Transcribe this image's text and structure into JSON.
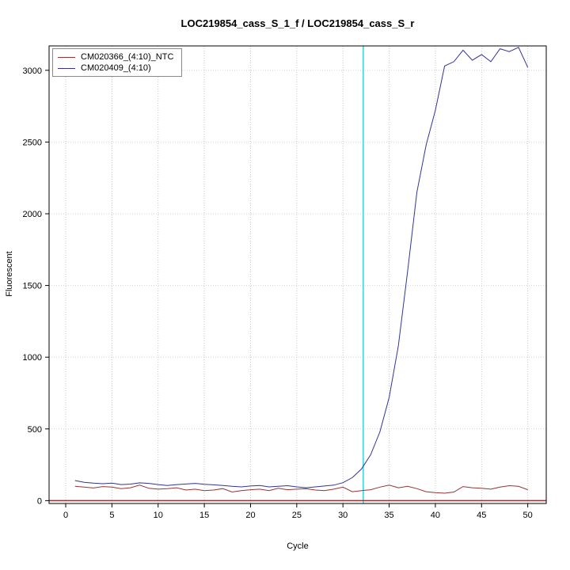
{
  "figure": {
    "title": "LOC219854_cass_S_1_f / LOC219854_cass_S_r",
    "xlabel": "Cycle",
    "ylabel": "Fluorescent"
  },
  "chart_data": {
    "type": "line",
    "title": "LOC219854_cass_S_1_f / LOC219854_cass_S_r",
    "xlabel": "Cycle",
    "ylabel": "Fluorescent",
    "xlim": [
      -1.8,
      52
    ],
    "ylim": [
      -20,
      3170
    ],
    "xticks": [
      0,
      5,
      10,
      15,
      20,
      25,
      30,
      35,
      40,
      45,
      50
    ],
    "yticks": [
      0,
      500,
      1000,
      1500,
      2000,
      2500,
      3000
    ],
    "grid": "dotted",
    "legend_position": "top-left",
    "grid_color": "#c8c8c8",
    "axis_color": "#000000",
    "threshold_line": {
      "y": 0,
      "color": "#993333"
    },
    "ct_line": {
      "x": 32.2,
      "color": "#00cccc"
    },
    "x": [
      1,
      2,
      3,
      4,
      5,
      6,
      7,
      8,
      9,
      10,
      11,
      12,
      13,
      14,
      15,
      16,
      17,
      18,
      19,
      20,
      21,
      22,
      23,
      24,
      25,
      26,
      27,
      28,
      29,
      30,
      31,
      32,
      33,
      34,
      35,
      36,
      37,
      38,
      39,
      40,
      41,
      42,
      43,
      44,
      45,
      46,
      47,
      48,
      49,
      50
    ],
    "series": [
      {
        "name": "CM020366_(4:10)_NTC",
        "color": "#993333",
        "values": [
          100,
          95,
          88,
          98,
          94,
          84,
          90,
          108,
          86,
          80,
          84,
          90,
          74,
          80,
          70,
          74,
          84,
          60,
          70,
          76,
          80,
          70,
          86,
          76,
          80,
          84,
          74,
          70,
          80,
          94,
          62,
          70,
          76,
          94,
          108,
          90,
          100,
          84,
          62,
          56,
          52,
          60,
          98,
          90,
          86,
          80,
          94,
          104,
          100,
          76
        ]
      },
      {
        "name": "CM020409_(4:10)",
        "color": "#333399",
        "values": [
          140,
          128,
          122,
          118,
          122,
          112,
          115,
          124,
          120,
          112,
          106,
          112,
          116,
          120,
          114,
          110,
          106,
          100,
          96,
          102,
          106,
          96,
          100,
          104,
          96,
          90,
          96,
          102,
          108,
          125,
          160,
          220,
          320,
          480,
          720,
          1080,
          1600,
          2150,
          2480,
          2720,
          3030,
          3060,
          3140,
          3070,
          3110,
          3060,
          3150,
          3130,
          3160,
          3020
        ]
      }
    ]
  }
}
